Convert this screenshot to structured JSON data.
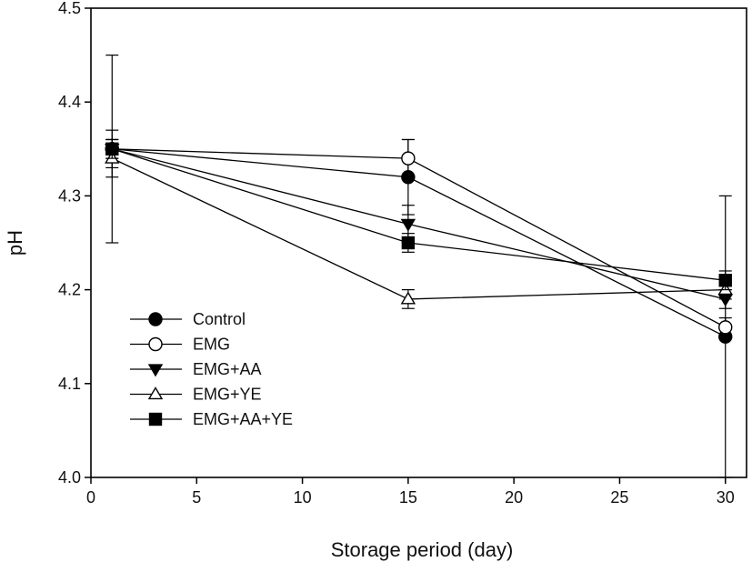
{
  "chart_data": {
    "type": "line",
    "title": "",
    "xlabel": "Storage period (day)",
    "ylabel": "pH",
    "xlim": [
      0,
      31
    ],
    "ylim": [
      4.0,
      4.5
    ],
    "x_ticks": [
      0,
      5,
      10,
      15,
      20,
      25,
      30
    ],
    "y_ticks": [
      "4.0",
      "4.1",
      "4.2",
      "4.3",
      "4.4",
      "4.5"
    ],
    "grid": false,
    "legend_position": "lower-left",
    "x": [
      1,
      15,
      30
    ],
    "series": [
      {
        "name": "Control",
        "marker": "filled-circle",
        "values": [
          4.35,
          4.32,
          4.15
        ],
        "errors": [
          0.1,
          0.04,
          0.15
        ]
      },
      {
        "name": "EMG",
        "marker": "open-circle",
        "values": [
          4.35,
          4.34,
          4.16
        ],
        "errors": [
          0.02,
          0.02,
          0.01
        ]
      },
      {
        "name": "EMG+AA",
        "marker": "filled-triangle-down",
        "values": [
          4.35,
          4.27,
          4.19
        ],
        "errors": [
          0.01,
          0.02,
          0.01
        ]
      },
      {
        "name": "EMG+YE",
        "marker": "open-triangle-up",
        "values": [
          4.34,
          4.19,
          4.2
        ],
        "errors": [
          0.02,
          0.01,
          0.01
        ]
      },
      {
        "name": "EMG+AA+YE",
        "marker": "filled-square",
        "values": [
          4.35,
          4.25,
          4.21
        ],
        "errors": [
          0.01,
          0.01,
          0.01
        ]
      }
    ],
    "colors": {
      "line": "#000000",
      "axis": "#000000",
      "background": "#ffffff"
    }
  }
}
